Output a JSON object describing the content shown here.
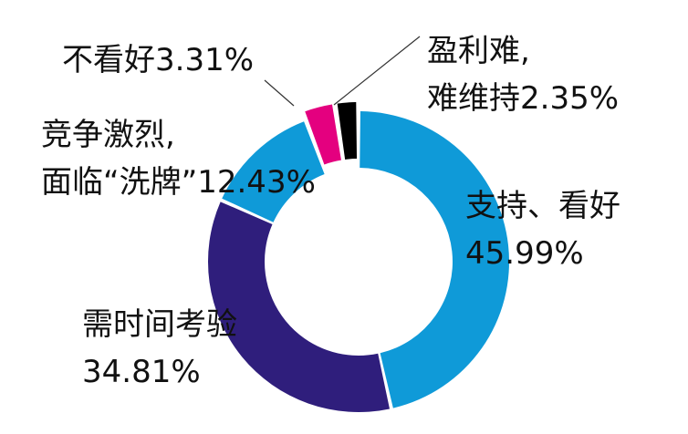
{
  "chart_data": {
    "type": "pie",
    "donut": true,
    "categories": [
      "支持、看好",
      "需时间考验",
      "竞争激烈,面临“洗牌”",
      "不看好",
      "盈利难,难维持"
    ],
    "values": [
      45.99,
      34.81,
      12.43,
      3.31,
      2.35
    ],
    "value_labels": [
      "45.99%",
      "34.81%",
      "12.43%",
      "3.31%",
      "2.35%"
    ],
    "colors": [
      "#0f9ad8",
      "#2f1e7c",
      "#0f9ad8",
      "#e4007f",
      "#000000"
    ]
  }
}
